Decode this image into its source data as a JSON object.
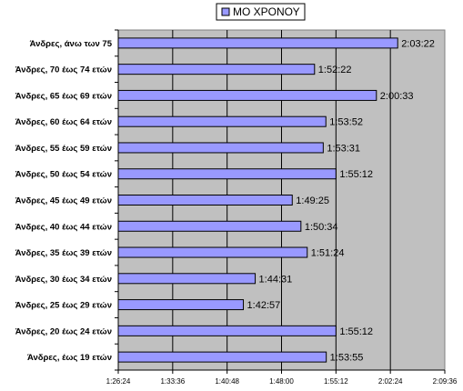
{
  "chart_data": {
    "type": "bar",
    "orientation": "horizontal",
    "categories": [
      "Άνδρες, άνω των 75",
      "Άνδρες, 70 έως 74 ετών",
      "Άνδρες, 65 έως 69 ετών",
      "Άνδρες, 60 έως 64 ετών",
      "Άνδρες, 55 έως 59 ετών",
      "Άνδρες, 50 έως 54 ετών",
      "Άνδρες, 45 έως 49 ετών",
      "Άνδρες, 40 έως 44 ετών",
      "Άνδρες, 35 έως 39 ετών",
      "Άνδρες, 30 έως 34 ετών",
      "Άνδρες, 25 έως 29 ετών",
      "Άνδρες, 20 έως 24 ετών",
      "Άνδρες, έως 19 ετών"
    ],
    "series": [
      {
        "name": "ΜΟ ΧΡΟΝΟΥ",
        "values": [
          "2:03:22",
          "1:52:22",
          "2:00:33",
          "1:53:52",
          "1:53:31",
          "1:55:12",
          "1:49:25",
          "1:50:34",
          "1:51:24",
          "1:44:31",
          "1:42:57",
          "1:55:12",
          "1:53:55"
        ]
      }
    ],
    "xlim": [
      "1:26:24",
      "2:09:36"
    ],
    "x_ticks": [
      "1:26:24",
      "1:33:36",
      "1:40:48",
      "1:48:00",
      "1:55:12",
      "2:02:24",
      "2:09:36"
    ],
    "grid": "vertical",
    "legend": "top-center",
    "colors": {
      "bar_fill": "#9999ff",
      "plot_background": "#c0c0c0"
    }
  }
}
